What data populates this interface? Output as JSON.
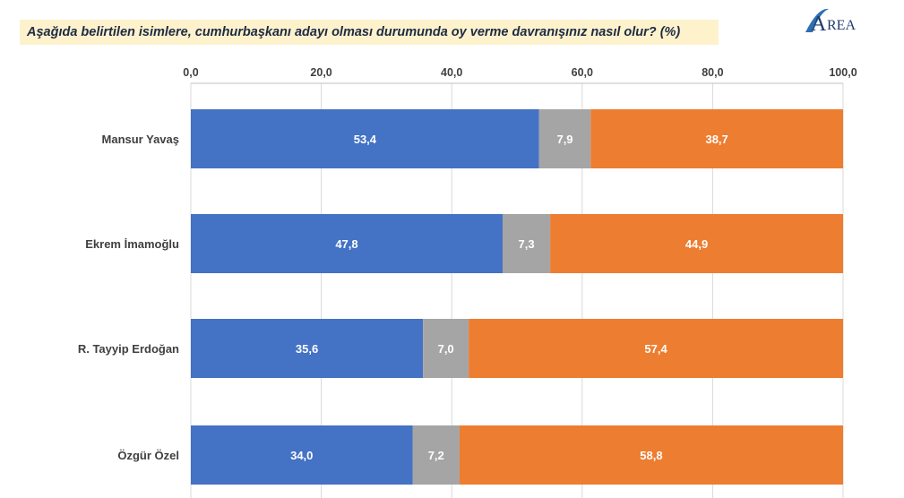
{
  "header": {
    "title": "Aşağıda belirtilen isimlere, cumhurbaşkanı adayı olması durumunda oy verme davranışınız nasıl olur? (%)",
    "logo_text": "REA",
    "logo_letter": "A"
  },
  "chart_data": {
    "type": "bar",
    "orientation": "horizontal",
    "stacked": true,
    "categories": [
      "Mansur Yavaş",
      "Ekrem İmamoğlu",
      "R. Tayyip Erdoğan",
      "Özgür Özel"
    ],
    "series": [
      {
        "values": [
          53.4,
          47.8,
          35.6,
          34.0
        ],
        "color": "#4472c4"
      },
      {
        "values": [
          7.9,
          7.3,
          7.0,
          7.2
        ],
        "color": "#a5a5a5"
      },
      {
        "values": [
          38.7,
          44.9,
          57.4,
          58.8
        ],
        "color": "#ed7d31"
      }
    ],
    "data_labels": [
      [
        "53,4",
        "7,9",
        "38,7"
      ],
      [
        "47,8",
        "7,3",
        "44,9"
      ],
      [
        "35,6",
        "7,0",
        "57,4"
      ],
      [
        "34,0",
        "7,2",
        "58,8"
      ]
    ],
    "xlim": [
      0,
      100
    ],
    "xticks": [
      0,
      20,
      40,
      60,
      80,
      100
    ],
    "xtick_labels": [
      "0,0",
      "20,0",
      "40,0",
      "60,0",
      "80,0",
      "100,0"
    ],
    "axis_position": "top",
    "grid": true,
    "legend": "none"
  }
}
